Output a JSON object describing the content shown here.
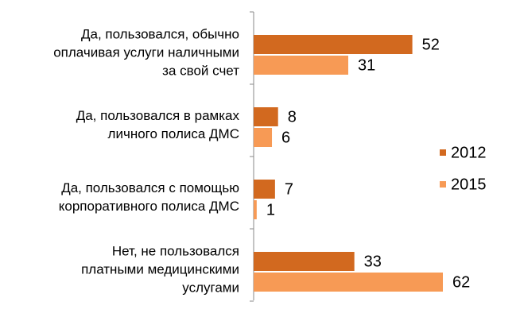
{
  "chart_data": {
    "type": "bar",
    "orientation": "horizontal",
    "categories": [
      [
        "Да, пользовался, обычно",
        "оплачивая услуги наличными",
        "за свой счет"
      ],
      [
        "Да, пользовался в рамках",
        "личного полиса ДМС"
      ],
      [
        "Да, пользовался с помощью",
        "корпоративного полиса ДМС"
      ],
      [
        "Нет, не пользовался",
        "платными медицинскими",
        "услугами"
      ]
    ],
    "series": [
      {
        "name": "2012",
        "color": "#d2691f",
        "values": [
          52,
          8,
          7,
          33
        ]
      },
      {
        "name": "2015",
        "color": "#f79a55",
        "values": [
          31,
          6,
          1,
          62
        ]
      }
    ],
    "legend": "right"
  }
}
